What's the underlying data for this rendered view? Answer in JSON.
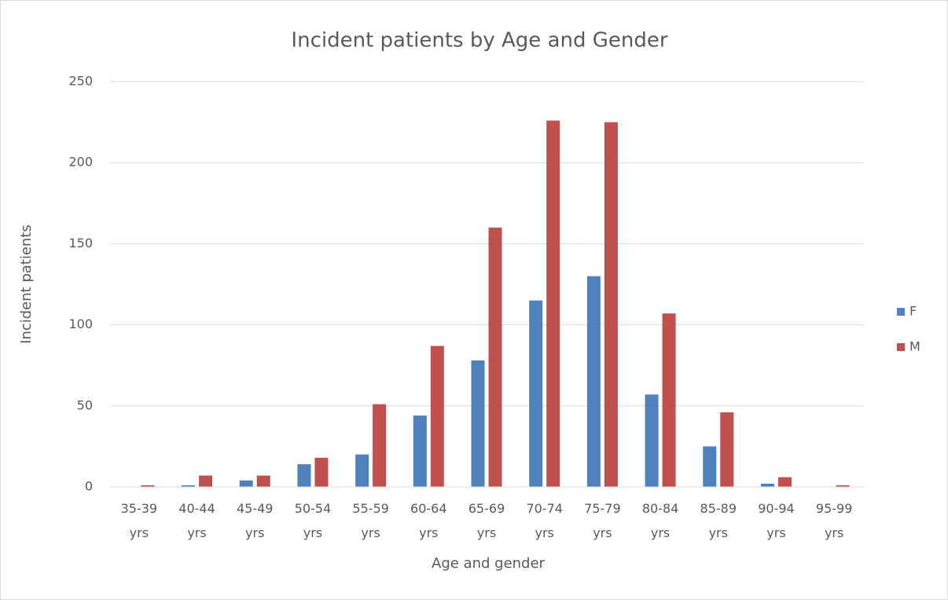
{
  "chart_data": {
    "type": "bar",
    "title": "Incident patients by Age and Gender",
    "x_label": "Age and gender",
    "y_label": "Incident patients",
    "categories": [
      "35-39 yrs",
      "40-44 yrs",
      "45-49 yrs",
      "50-54 yrs",
      "55-59 yrs",
      "60-64 yrs",
      "65-69 yrs",
      "70-74 yrs",
      "75-79 yrs",
      "80-84 yrs",
      "85-89 yrs",
      "90-94 yrs",
      "95-99 yrs"
    ],
    "series": [
      {
        "name": "F",
        "color": "#4f81bd",
        "values": [
          0,
          1,
          4,
          14,
          20,
          44,
          78,
          115,
          130,
          57,
          25,
          2,
          0
        ]
      },
      {
        "name": "M",
        "color": "#c0504d",
        "values": [
          1,
          7,
          7,
          18,
          51,
          87,
          160,
          226,
          225,
          107,
          46,
          6,
          1
        ]
      }
    ],
    "ylim": [
      0,
      250
    ],
    "yticks": [
      0,
      50,
      100,
      150,
      200,
      250
    ],
    "grid": true,
    "legend": "right"
  }
}
